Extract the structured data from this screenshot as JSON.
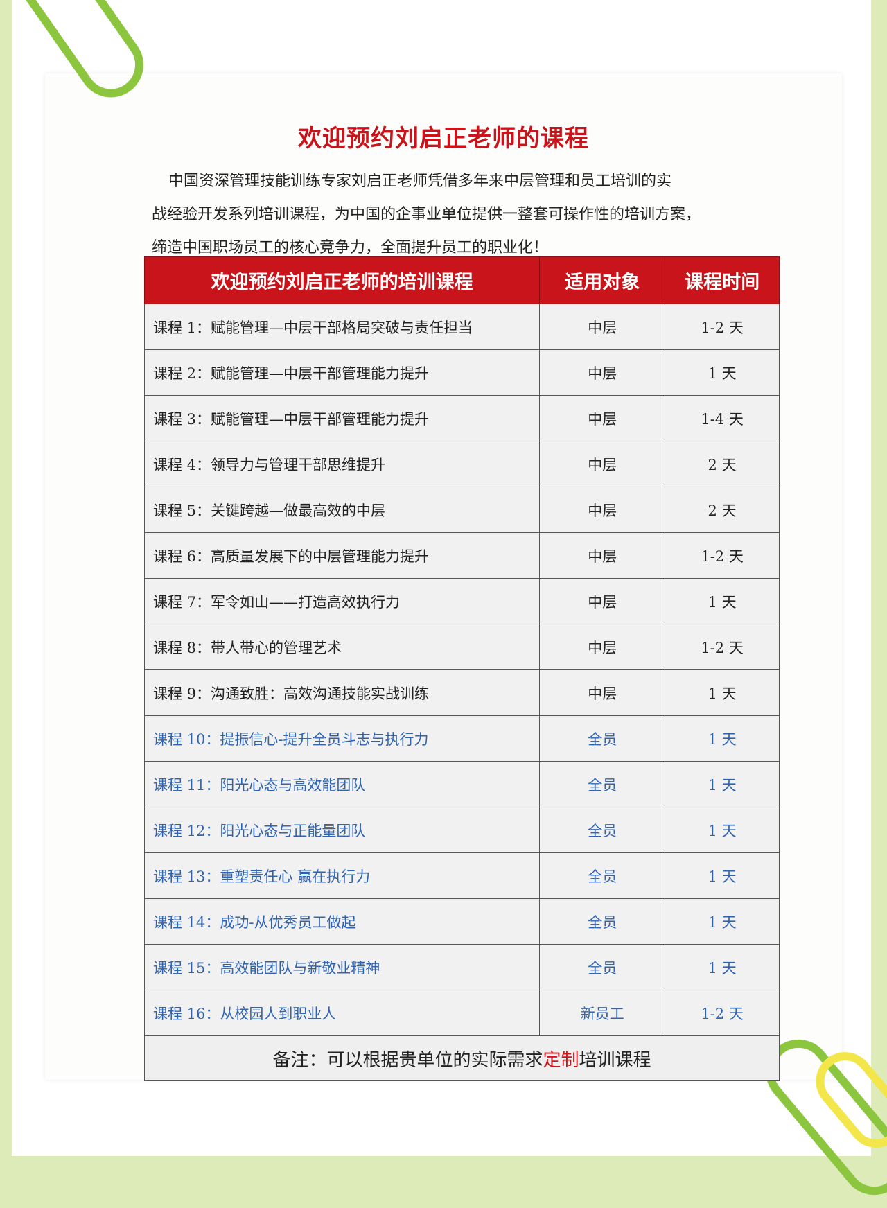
{
  "title": "欢迎预约刘启正老师的课程",
  "intro": [
    "中国资深管理技能训练专家刘启正老师凭借多年来中层管理和员工培训的实",
    "战经验开发系列培训课程，为中国的企事业单位提供一整套可操作性的培训方案，",
    "缔造中国职场员工的核心竞争力，全面提升员工的职业化！"
  ],
  "table": {
    "headers": [
      "欢迎预约刘启正老师的培训课程",
      "适用对象",
      "课程时间"
    ],
    "rows": [
      {
        "course": "课程 1：赋能管理—中层干部格局突破与责任担当",
        "audience": "中层",
        "duration": "1-2 天"
      },
      {
        "course": "课程 2：赋能管理—中层干部管理能力提升",
        "audience": "中层",
        "duration": "1 天"
      },
      {
        "course": "课程 3：赋能管理—中层干部管理能力提升",
        "audience": "中层",
        "duration": "1-4 天"
      },
      {
        "course": "课程 4：领导力与管理干部思维提升",
        "audience": "中层",
        "duration": "2 天"
      },
      {
        "course": "课程 5：关键跨越—做最高效的中层",
        "audience": "中层",
        "duration": "2 天"
      },
      {
        "course": "课程 6：高质量发展下的中层管理能力提升",
        "audience": "中层",
        "duration": "1-2 天"
      },
      {
        "course": "课程 7：军令如山——打造高效执行力",
        "audience": "中层",
        "duration": "1 天"
      },
      {
        "course": "课程 8：带人带心的管理艺术",
        "audience": "中层",
        "duration": "1-2 天"
      },
      {
        "course": "课程 9：沟通致胜：高效沟通技能实战训练",
        "audience": "中层",
        "duration": "1 天"
      },
      {
        "course": "课程 10：提振信心-提升全员斗志与执行力",
        "audience": "全员",
        "duration": "1 天"
      },
      {
        "course": "课程 11：阳光心态与高效能团队",
        "audience": "全员",
        "duration": "1 天"
      },
      {
        "course": "课程 12：阳光心态与正能量团队",
        "audience": "全员",
        "duration": "1 天"
      },
      {
        "course": "课程 13：重塑责任心 赢在执行力",
        "audience": "全员",
        "duration": "1 天"
      },
      {
        "course": "课程 14：成功-从优秀员工做起",
        "audience": "全员",
        "duration": "1 天"
      },
      {
        "course": "课程 15：高效能团队与新敬业精神",
        "audience": "全员",
        "duration": "1 天"
      },
      {
        "course": "课程 16：从校园人到职业人",
        "audience": "新员工",
        "duration": "1-2 天"
      }
    ],
    "note": {
      "prefix": "备注：可以根据贵单位的实际需求",
      "highlight": "定制",
      "suffix": "培训课程"
    }
  },
  "colors": {
    "accent_red": "#c8141a",
    "blue_text": "#2f64b3",
    "background_green": "#dcebb8",
    "clip_green": "#8cc63f"
  }
}
